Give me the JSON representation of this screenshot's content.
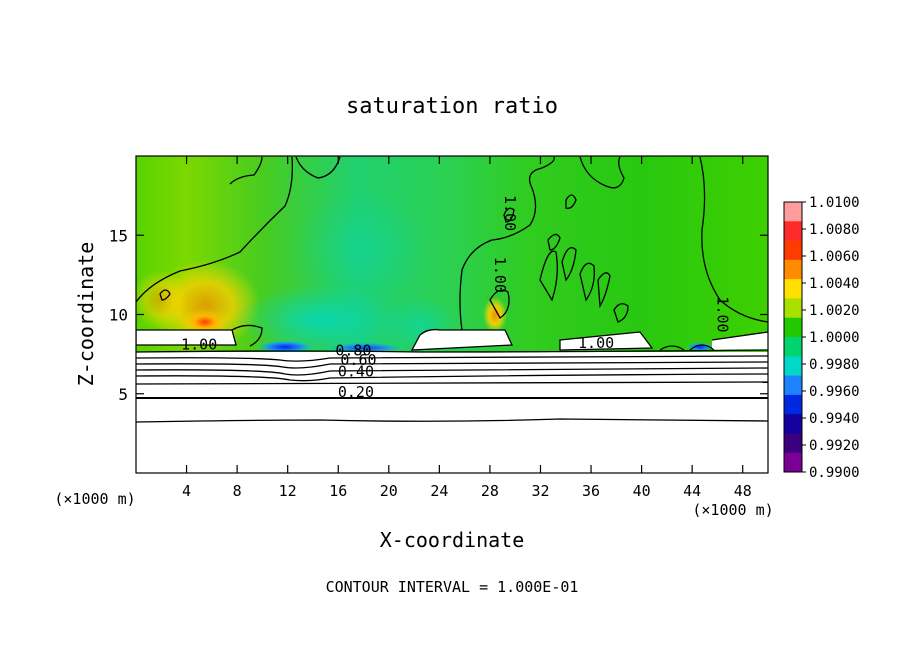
{
  "chart_data": {
    "type": "heatmap",
    "title": "saturation ratio",
    "xlabel": "X-coordinate",
    "ylabel": "Z-coordinate",
    "x_unit_left": "(×1000 m)",
    "x_unit_right": "(×1000 m)",
    "xlim": [
      0,
      50
    ],
    "ylim": [
      0,
      20
    ],
    "x_ticks": [
      4,
      8,
      12,
      16,
      20,
      24,
      28,
      32,
      36,
      40,
      44,
      48
    ],
    "y_ticks": [
      5,
      10,
      15
    ],
    "colorbar": {
      "labels": [
        "1.0100",
        "1.0080",
        "1.0060",
        "1.0040",
        "1.0020",
        "1.0000",
        "0.9980",
        "0.9960",
        "0.9940",
        "0.9920",
        "0.9900"
      ],
      "colors": [
        "#ff9c9c",
        "#ff2a2a",
        "#ff3c00",
        "#ff8c00",
        "#ffe000",
        "#a8e000",
        "#22c800",
        "#00d46e",
        "#00d8c8",
        "#1e82ff",
        "#0028e0",
        "#14009e",
        "#3a0080",
        "#7a0096"
      ]
    },
    "contour_labels": [
      {
        "text": "1.00",
        "x": 5,
        "y": 7.8
      },
      {
        "text": "0.80",
        "x": 17.2,
        "y": 7.4
      },
      {
        "text": "0.60",
        "x": 17.6,
        "y": 6.8
      },
      {
        "text": "0.40",
        "x": 17.4,
        "y": 6.1
      },
      {
        "text": "0.20",
        "x": 17.4,
        "y": 4.8
      },
      {
        "text": "1.00",
        "x": 29.2,
        "y": 16.4
      },
      {
        "text": "1.00",
        "x": 28.4,
        "y": 12.5
      },
      {
        "text": "1.00",
        "x": 36.4,
        "y": 7.9
      },
      {
        "text": "1.00",
        "x": 46.0,
        "y": 10.0
      }
    ],
    "contour_interval_label": "CONTOUR INTERVAL = 1.000E-01"
  }
}
